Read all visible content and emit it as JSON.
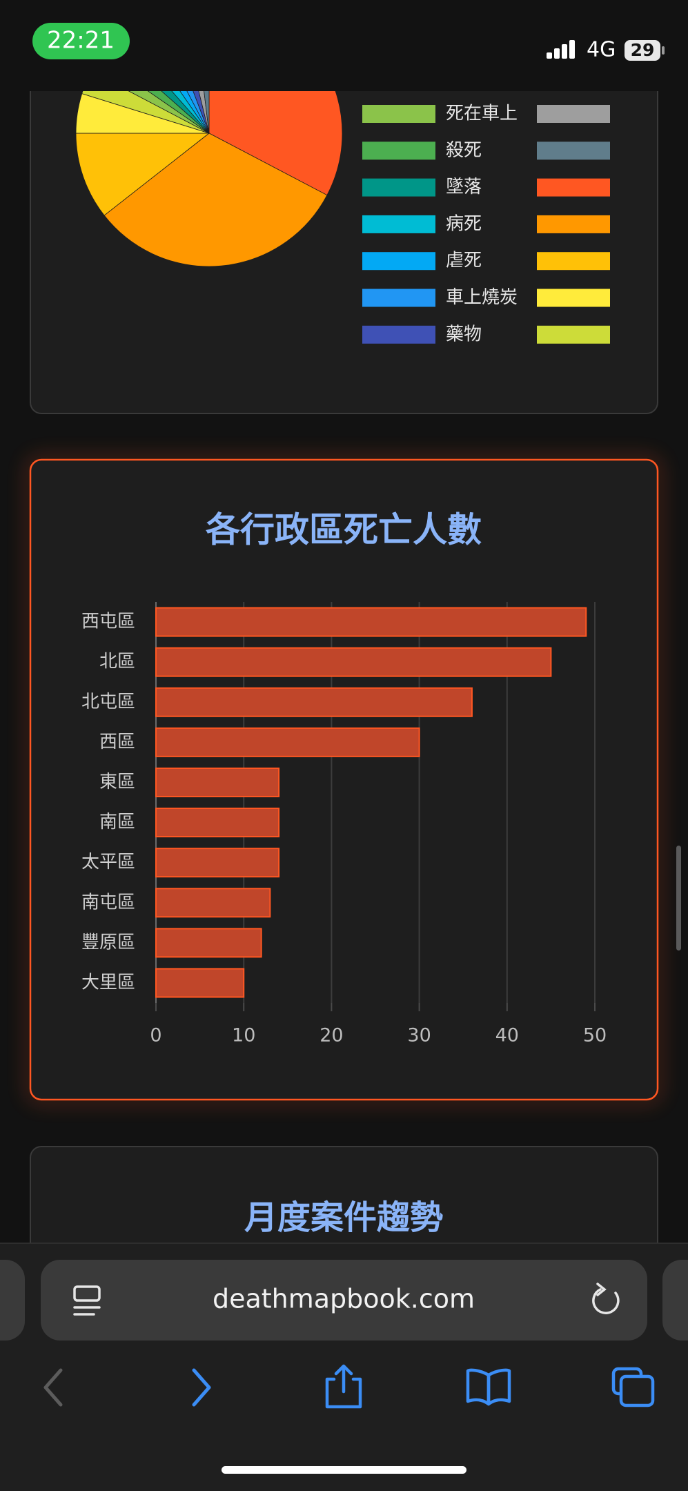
{
  "status_bar": {
    "time": "22:21",
    "network": "4G",
    "battery": "29"
  },
  "chart_data": [
    {
      "type": "pie",
      "categories": [
        null,
        null,
        null,
        null,
        null,
        "死在車上",
        "殺死",
        "墜落",
        "病死",
        "虐死",
        "車上燒炭",
        "藥物",
        null,
        null
      ],
      "values": [
        34,
        33,
        11,
        5,
        3,
        2,
        2,
        2,
        2,
        2,
        2,
        2,
        2,
        2
      ],
      "colors": [
        "#ff5722",
        "#ff9800",
        "#ffc107",
        "#ffeb3b",
        "#cddc39",
        "#8bc34a",
        "#4caf50",
        "#009688",
        "#00bcd4",
        "#03a9f4",
        "#2196f3",
        "#3f51b5",
        "#9e9e9e",
        "#607d8b"
      ]
    },
    {
      "type": "bar",
      "orientation": "horizontal",
      "title": "各行政區死亡人數",
      "categories": [
        "西屯區",
        "北區",
        "北屯區",
        "西區",
        "東區",
        "南區",
        "太平區",
        "南屯區",
        "豐原區",
        "大里區"
      ],
      "values": [
        49,
        45,
        36,
        30,
        14,
        14,
        14,
        13,
        12,
        10
      ],
      "color": "#c0462a",
      "border_color": "#ff5722",
      "xlim": [
        0,
        50
      ],
      "xticks": [
        0,
        10,
        20,
        30,
        40,
        50
      ],
      "grid": true
    }
  ],
  "next_card": {
    "title": "月度案件趨勢"
  },
  "browser": {
    "url": "deathmapbook.com"
  }
}
